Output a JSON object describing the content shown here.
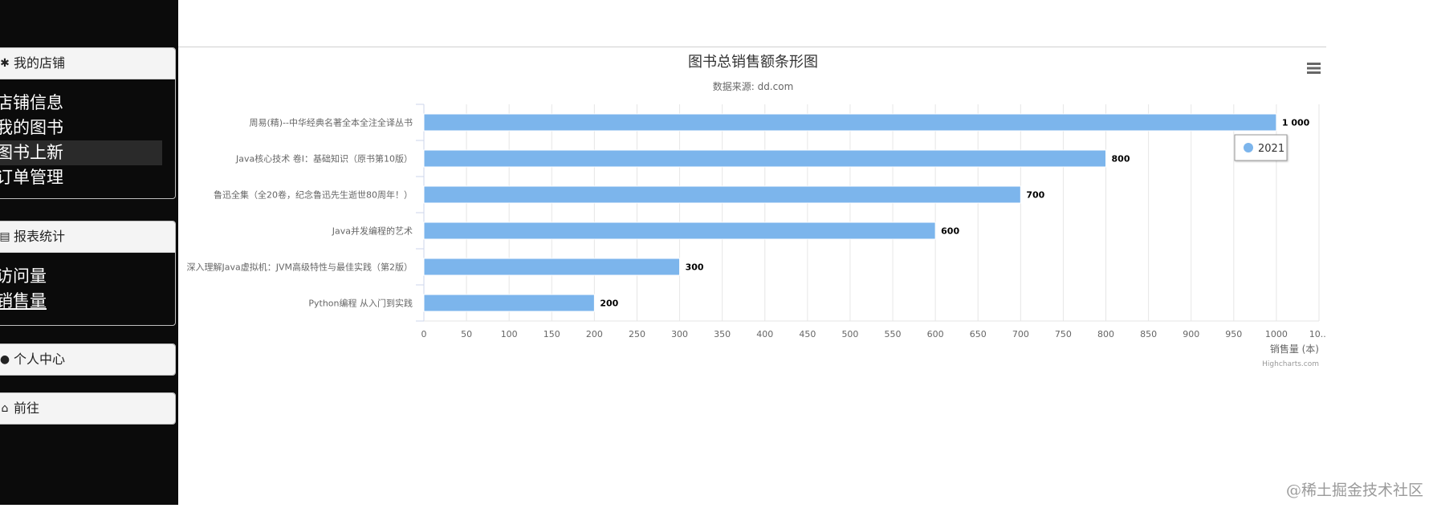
{
  "sidebar": {
    "sections": [
      {
        "title": "我的店铺",
        "icon": "gear-icon",
        "items": [
          {
            "label": "店铺信息",
            "active": false
          },
          {
            "label": "我的图书",
            "active": false
          },
          {
            "label": "图书上新",
            "active": true
          },
          {
            "label": "订单管理",
            "active": false
          }
        ]
      },
      {
        "title": "报表统计",
        "icon": "report-icon",
        "items": [
          {
            "label": "访问量",
            "active": false
          },
          {
            "label": "销售量",
            "active": false
          }
        ]
      },
      {
        "title": "个人中心",
        "icon": "user-icon",
        "items": []
      },
      {
        "title": "前往",
        "icon": "home-icon",
        "items": []
      }
    ]
  },
  "chart_menu_icon": "hamburger-icon",
  "chart_credit": "Highcharts.com",
  "chart_data": {
    "type": "bar",
    "title": "图书总销售额条形图",
    "subtitle": "数据来源: dd.com",
    "categories": [
      "周易(精)--中华经典名著全本全注全译丛书",
      "Java核心技术 卷I：基础知识（原书第10版）",
      "鲁迅全集（全20卷，纪念鲁迅先生逝世80周年！）",
      "Java并发编程的艺术",
      "深入理解Java虚拟机：JVM高级特性与最佳实践（第2版）",
      "Python编程 从入门到实践"
    ],
    "series": [
      {
        "name": "2021",
        "values": [
          1000,
          800,
          700,
          600,
          300,
          200
        ],
        "color": "#7cb5ec"
      }
    ],
    "data_labels": [
      "1 000",
      "800",
      "700",
      "600",
      "300",
      "200"
    ],
    "xlim": [
      0,
      1050
    ],
    "tick_step": 50,
    "tick_labels": [
      "0",
      "50",
      "100",
      "150",
      "200",
      "250",
      "300",
      "350",
      "400",
      "450",
      "500",
      "550",
      "600",
      "650",
      "700",
      "750",
      "800",
      "850",
      "900",
      "950",
      "1000",
      "10..."
    ],
    "value_axis_label": "销售量 (本)",
    "grid": true,
    "legend_position": "right"
  }
}
